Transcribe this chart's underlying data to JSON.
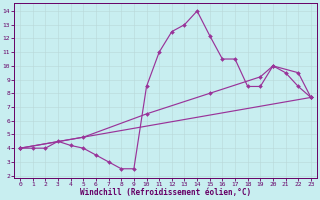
{
  "xlabel": "Windchill (Refroidissement éolien,°C)",
  "bg_color": "#c8eef0",
  "line_color": "#993399",
  "xlim": [
    -0.5,
    23.5
  ],
  "ylim": [
    1.8,
    14.6
  ],
  "xticks": [
    0,
    1,
    2,
    3,
    4,
    5,
    6,
    7,
    8,
    9,
    10,
    11,
    12,
    13,
    14,
    15,
    16,
    17,
    18,
    19,
    20,
    21,
    22,
    23
  ],
  "yticks": [
    2,
    3,
    4,
    5,
    6,
    7,
    8,
    9,
    10,
    11,
    12,
    13,
    14
  ],
  "line1_x": [
    0,
    1,
    2,
    3,
    4,
    5,
    6,
    7,
    8,
    9,
    10,
    11,
    12,
    13,
    14,
    15,
    16,
    17,
    18,
    19,
    20,
    21,
    22,
    23
  ],
  "line1_y": [
    4.0,
    4.0,
    4.0,
    4.5,
    4.2,
    4.0,
    3.5,
    3.0,
    2.5,
    2.5,
    8.5,
    11.0,
    12.5,
    13.0,
    14.0,
    12.2,
    10.5,
    10.5,
    8.5,
    8.5,
    10.0,
    9.5,
    8.5,
    7.7
  ],
  "line2_x": [
    0,
    5,
    10,
    15,
    19,
    20,
    22,
    23
  ],
  "line2_y": [
    4.0,
    4.8,
    6.5,
    8.0,
    9.2,
    10.0,
    9.5,
    7.7
  ],
  "line3_x": [
    0,
    23
  ],
  "line3_y": [
    4.0,
    7.7
  ],
  "marker": "D",
  "markersize": 2.0,
  "linewidth": 0.85,
  "tick_fontsize": 4.5,
  "label_fontsize": 5.5,
  "grid_color": "#b8d8d8",
  "axis_color": "#660066"
}
